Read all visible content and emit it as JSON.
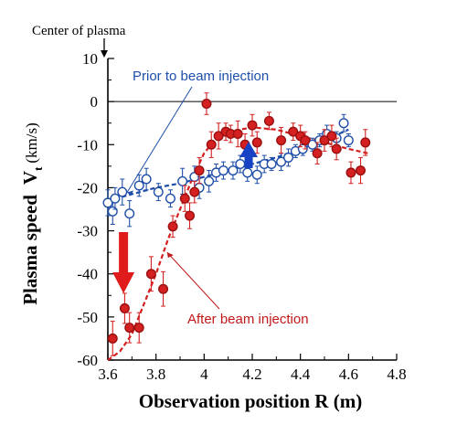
{
  "chart_data": {
    "type": "scatter",
    "xlabel": "Observation position R (m)",
    "ylabel_main": "Plasma speed",
    "ylabel_symbol": "V",
    "ylabel_sub": "t",
    "ylabel_unit": "(km/s)",
    "xlim": [
      3.6,
      4.8
    ],
    "ylim": [
      -60,
      10
    ],
    "xticks": [
      "3.6",
      "3.8",
      "4",
      "4.2",
      "4.4",
      "4.6",
      "4.8"
    ],
    "yticks": [
      "10",
      "0",
      "-10",
      "-20",
      "-30",
      "-40",
      "-50",
      "-60"
    ],
    "zero_line": 0,
    "top_note": "Center of plasma",
    "colors": {
      "prior": "#1f4fa8",
      "after": "#d42020",
      "arrow_after": "#e01b1b",
      "arrow_prior": "#1842c4"
    },
    "annotations": {
      "prior": "Prior to beam injection",
      "after": "After beam injection"
    },
    "series": [
      {
        "key": "prior",
        "marker": "open-circle",
        "points": [
          {
            "x": 3.6,
            "y": -23.5,
            "e": 3
          },
          {
            "x": 3.62,
            "y": -25.5,
            "e": 3
          },
          {
            "x": 3.63,
            "y": -22.5,
            "e": 2.5
          },
          {
            "x": 3.66,
            "y": -21,
            "e": 3
          },
          {
            "x": 3.69,
            "y": -26,
            "e": 3
          },
          {
            "x": 3.73,
            "y": -19.5,
            "e": 2.5
          },
          {
            "x": 3.76,
            "y": -18,
            "e": 2.5
          },
          {
            "x": 3.81,
            "y": -21,
            "e": 2
          },
          {
            "x": 3.86,
            "y": -22.5,
            "e": 2
          },
          {
            "x": 3.91,
            "y": -18.5,
            "e": 3
          },
          {
            "x": 3.96,
            "y": -17.5,
            "e": 2.5
          },
          {
            "x": 3.98,
            "y": -20,
            "e": 2.5
          },
          {
            "x": 4.02,
            "y": -18.5,
            "e": 2.5
          },
          {
            "x": 4.05,
            "y": -16.5,
            "e": 2
          },
          {
            "x": 4.08,
            "y": -16,
            "e": 2
          },
          {
            "x": 4.12,
            "y": -16,
            "e": 2
          },
          {
            "x": 4.15,
            "y": -14.5,
            "e": 2
          },
          {
            "x": 4.18,
            "y": -16.5,
            "e": 2
          },
          {
            "x": 4.22,
            "y": -17,
            "e": 2
          },
          {
            "x": 4.25,
            "y": -14.5,
            "e": 2
          },
          {
            "x": 4.28,
            "y": -14.5,
            "e": 1.5
          },
          {
            "x": 4.32,
            "y": -14,
            "e": 2
          },
          {
            "x": 4.35,
            "y": -13,
            "e": 2
          },
          {
            "x": 4.38,
            "y": -11.5,
            "e": 1.5
          },
          {
            "x": 4.41,
            "y": -11,
            "e": 1.5
          },
          {
            "x": 4.45,
            "y": -10,
            "e": 1.5
          },
          {
            "x": 4.48,
            "y": -9,
            "e": 1.5
          },
          {
            "x": 4.51,
            "y": -7.5,
            "e": 2
          },
          {
            "x": 4.55,
            "y": -8.5,
            "e": 1.5
          },
          {
            "x": 4.58,
            "y": -5,
            "e": 2
          },
          {
            "x": 4.6,
            "y": -9,
            "e": 1.5
          }
        ],
        "fit": [
          [
            3.6,
            -23
          ],
          [
            3.7,
            -21.5
          ],
          [
            3.8,
            -20
          ],
          [
            3.9,
            -19
          ],
          [
            4.0,
            -17.5
          ],
          [
            4.1,
            -16
          ],
          [
            4.2,
            -14.5
          ],
          [
            4.3,
            -13
          ],
          [
            4.4,
            -11
          ],
          [
            4.5,
            -9
          ],
          [
            4.6,
            -6.5
          ]
        ]
      },
      {
        "key": "after",
        "marker": "filled-circle",
        "points": [
          {
            "x": 3.62,
            "y": -55,
            "e": 4
          },
          {
            "x": 3.67,
            "y": -48,
            "e": 3.5
          },
          {
            "x": 3.69,
            "y": -52.5,
            "e": 3.5
          },
          {
            "x": 3.73,
            "y": -52.5,
            "e": 3.5
          },
          {
            "x": 3.78,
            "y": -40,
            "e": 4
          },
          {
            "x": 3.83,
            "y": -43.5,
            "e": 4
          },
          {
            "x": 3.87,
            "y": -29,
            "e": 2.5
          },
          {
            "x": 3.92,
            "y": -22.5,
            "e": 3
          },
          {
            "x": 3.94,
            "y": -26.5,
            "e": 3
          },
          {
            "x": 3.96,
            "y": -21,
            "e": 2.5
          },
          {
            "x": 3.98,
            "y": -16,
            "e": 3
          },
          {
            "x": 4.01,
            "y": -0.5,
            "e": 2.5
          },
          {
            "x": 4.03,
            "y": -10,
            "e": 3
          },
          {
            "x": 4.06,
            "y": -8,
            "e": 3
          },
          {
            "x": 4.09,
            "y": -7,
            "e": 2
          },
          {
            "x": 4.11,
            "y": -7.5,
            "e": 2
          },
          {
            "x": 4.14,
            "y": -7.5,
            "e": 3
          },
          {
            "x": 4.17,
            "y": -10,
            "e": 2.5
          },
          {
            "x": 4.2,
            "y": -5.5,
            "e": 2.5
          },
          {
            "x": 4.22,
            "y": -9.5,
            "e": 2.5
          },
          {
            "x": 4.27,
            "y": -4.5,
            "e": 2
          },
          {
            "x": 4.32,
            "y": -9,
            "e": 3
          },
          {
            "x": 4.37,
            "y": -7,
            "e": 2
          },
          {
            "x": 4.4,
            "y": -8,
            "e": 2.5
          },
          {
            "x": 4.42,
            "y": -9,
            "e": 2
          },
          {
            "x": 4.47,
            "y": -12,
            "e": 2.5
          },
          {
            "x": 4.5,
            "y": -9,
            "e": 2.5
          },
          {
            "x": 4.53,
            "y": -8,
            "e": 2.5
          },
          {
            "x": 4.55,
            "y": -11,
            "e": 2.5
          },
          {
            "x": 4.61,
            "y": -16.5,
            "e": 2.5
          },
          {
            "x": 4.65,
            "y": -16,
            "e": 3
          },
          {
            "x": 4.67,
            "y": -9.5,
            "e": 3
          }
        ],
        "fit": [
          [
            3.6,
            -60
          ],
          [
            3.65,
            -58
          ],
          [
            3.7,
            -54
          ],
          [
            3.75,
            -47
          ],
          [
            3.8,
            -40
          ],
          [
            3.85,
            -32
          ],
          [
            3.9,
            -25
          ],
          [
            3.95,
            -18
          ],
          [
            4.0,
            -12
          ],
          [
            4.05,
            -8.5
          ],
          [
            4.1,
            -7
          ],
          [
            4.2,
            -6
          ],
          [
            4.3,
            -6.5
          ],
          [
            4.4,
            -8
          ],
          [
            4.5,
            -9.5
          ],
          [
            4.6,
            -11
          ],
          [
            4.68,
            -12
          ]
        ]
      }
    ]
  }
}
